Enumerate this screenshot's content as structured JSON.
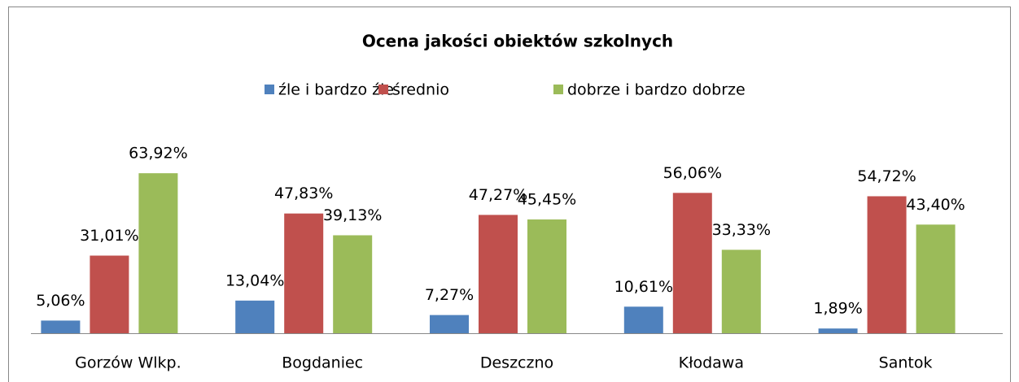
{
  "chart_data": {
    "type": "bar",
    "title": "Ocena jakości obiektów szkolnych",
    "categories": [
      "Gorzów Wlkp.",
      "Bogdaniec",
      "Deszczno",
      "Kłodawa",
      "Santok"
    ],
    "series": [
      {
        "name": "źle i bardzo źle",
        "color": "#4f81bd",
        "values": [
          5.06,
          13.04,
          7.27,
          10.61,
          1.89
        ],
        "value_labels": [
          "5,06%",
          "13,04%",
          "7,27%",
          "10,61%",
          "1,89%"
        ]
      },
      {
        "name": "średnio",
        "color": "#c0504d",
        "values": [
          31.01,
          47.83,
          47.27,
          56.06,
          54.72
        ],
        "value_labels": [
          "31,01%",
          "47,83%",
          "47,27%",
          "56,06%",
          "54,72%"
        ]
      },
      {
        "name": "dobrze i bardzo dobrze",
        "color": "#9bbb59",
        "values": [
          63.92,
          39.13,
          45.45,
          33.33,
          43.4
        ],
        "value_labels": [
          "63,92%",
          "39,13%",
          "45,45%",
          "33,33%",
          "43,40%"
        ]
      }
    ],
    "legend": "top"
  }
}
